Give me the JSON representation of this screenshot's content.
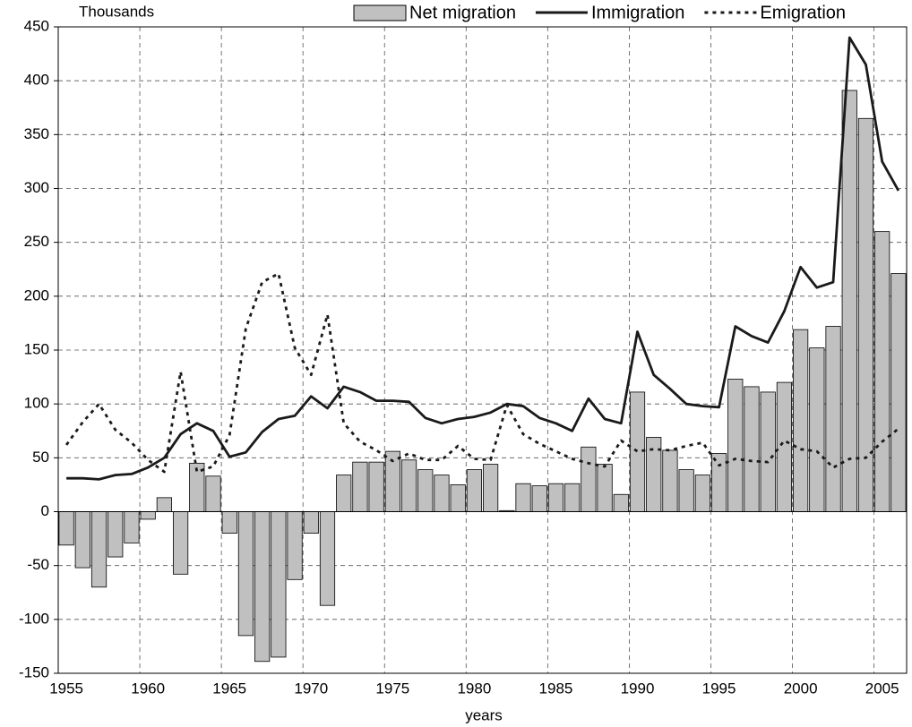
{
  "chart_data": {
    "type": "bar",
    "y_label": "Thousands",
    "x_label": "years",
    "categories": [
      "1955",
      null,
      null,
      null,
      null,
      "1960",
      null,
      null,
      null,
      null,
      "1965",
      null,
      null,
      null,
      null,
      "1970",
      null,
      null,
      null,
      null,
      "1975",
      null,
      null,
      null,
      null,
      "1980",
      null,
      null,
      null,
      null,
      "1985",
      null,
      null,
      null,
      null,
      "1990",
      null,
      null,
      null,
      null,
      "1995",
      null,
      null,
      null,
      null,
      "2000",
      null,
      null,
      null,
      null,
      "2005",
      null
    ],
    "series": [
      {
        "name": "Net migration",
        "type": "bar",
        "color": "#c0c0c0",
        "values": [
          -31,
          -52,
          -70,
          -42,
          -29,
          -7,
          13,
          -58,
          45,
          33,
          -20,
          -115,
          -139,
          -135,
          -63,
          -20,
          -87,
          34,
          46,
          46,
          56,
          48,
          39,
          34,
          25,
          39,
          44,
          1,
          26,
          24,
          26,
          26,
          60,
          44,
          16,
          111,
          69,
          57,
          39,
          34,
          54,
          123,
          116,
          111,
          120,
          169,
          152,
          172,
          391,
          365,
          260,
          221
        ]
      },
      {
        "name": "Immigration",
        "type": "line",
        "style": "solid",
        "color": "#1a1a1a",
        "values": [
          31,
          31,
          30,
          34,
          35,
          41,
          50,
          72,
          82,
          75,
          51,
          55,
          74,
          86,
          89,
          107,
          96,
          116,
          111,
          103,
          103,
          102,
          87,
          82,
          86,
          88,
          92,
          100,
          98,
          87,
          82,
          75,
          105,
          86,
          82,
          167,
          127,
          114,
          100,
          98,
          97,
          172,
          163,
          157,
          186,
          227,
          208,
          213,
          440,
          415,
          325,
          298
        ]
      },
      {
        "name": "Emigration",
        "type": "line",
        "style": "dotted",
        "color": "#1a1a1a",
        "values": [
          62,
          83,
          100,
          76,
          64,
          48,
          37,
          130,
          37,
          42,
          71,
          170,
          213,
          221,
          152,
          127,
          183,
          82,
          65,
          57,
          47,
          54,
          48,
          48,
          61,
          49,
          48,
          99,
          72,
          63,
          56,
          49,
          45,
          42,
          66,
          56,
          58,
          57,
          61,
          64,
          43,
          49,
          47,
          46,
          66,
          58,
          56,
          41,
          49,
          50,
          65,
          77
        ]
      }
    ],
    "ylim": [
      -150,
      450
    ],
    "yticks": [
      -150,
      -100,
      -50,
      0,
      50,
      100,
      150,
      200,
      250,
      300,
      350,
      400,
      450
    ],
    "grid": true
  }
}
